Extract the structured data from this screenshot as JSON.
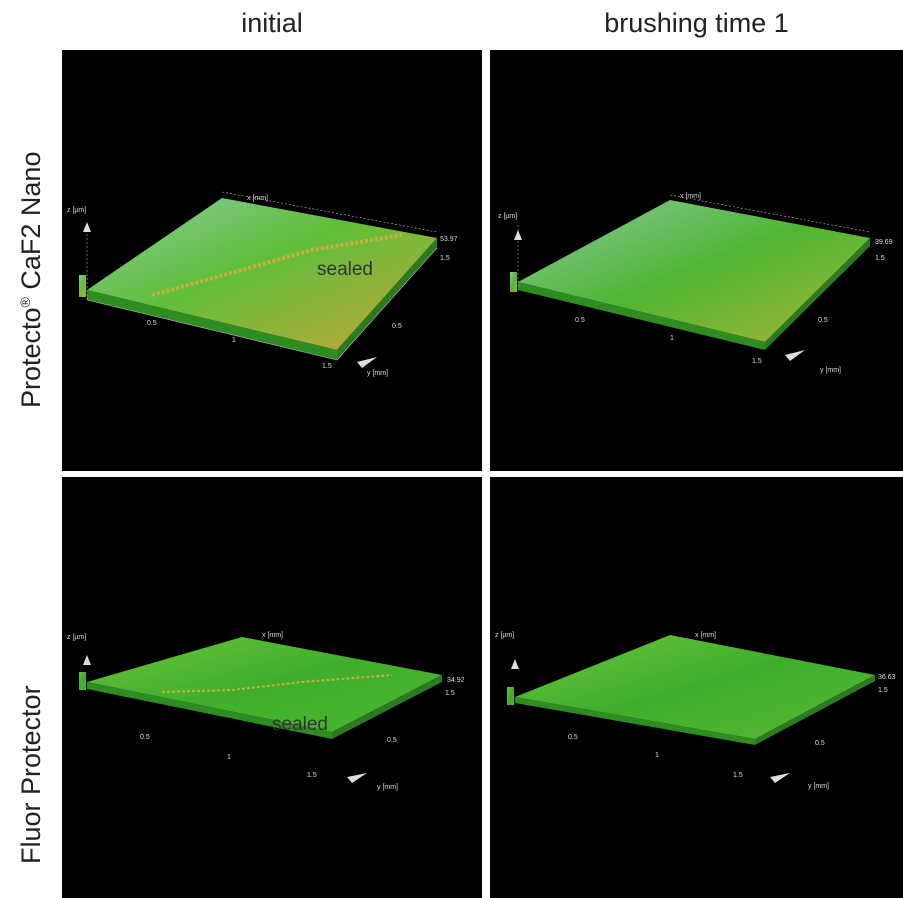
{
  "columns": [
    "initial",
    "brushing time 1"
  ],
  "rows": [
    {
      "name": "Protecto",
      "suffix": " CaF2 Nano",
      "reg": "®"
    },
    {
      "name": "Fluor Protector",
      "suffix": "",
      "reg": ""
    }
  ],
  "panels": [
    {
      "sealed": "sealed",
      "zmax": "53.97"
    },
    {
      "sealed": "",
      "zmax": "39.69"
    },
    {
      "sealed": "sealed",
      "zmax": "34.92"
    },
    {
      "sealed": "",
      "zmax": "36.63"
    }
  ],
  "axis": {
    "x": "x [mm]",
    "y": "y [mm]",
    "z": "z [µm]",
    "tick_05": "0.5",
    "tick_1": "1",
    "tick_15": "1.5"
  },
  "colors": {
    "surface_top": "#3fae2c",
    "surface_mid": "#6cc33c",
    "surface_light": "#8ec9a4",
    "edge": "#c9a43a",
    "background": "#000000"
  }
}
